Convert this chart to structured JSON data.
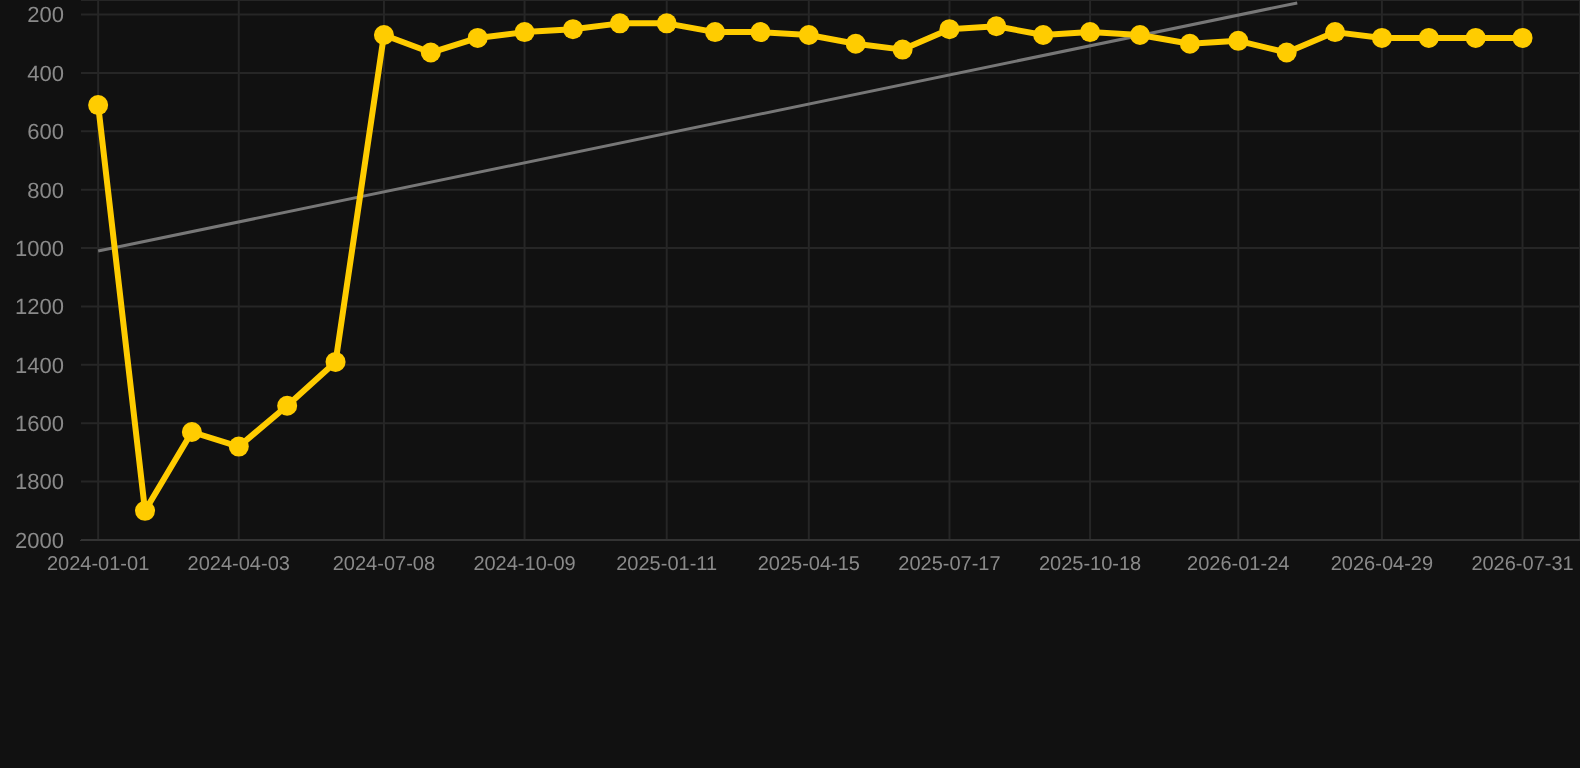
{
  "chart_data": {
    "type": "line",
    "x": [
      "2024-01-01",
      "2024-02-01",
      "2024-03-03",
      "2024-04-03",
      "2024-05-05",
      "2024-06-06",
      "2024-07-08",
      "2024-08-08",
      "2024-09-08",
      "2024-10-09",
      "2024-11-10",
      "2024-12-11",
      "2025-01-11",
      "2025-02-12",
      "2025-03-14",
      "2025-04-15",
      "2025-05-16",
      "2025-06-16",
      "2025-07-17",
      "2025-08-17",
      "2025-09-17",
      "2025-10-18",
      "2025-11-20",
      "2025-12-23",
      "2026-01-24",
      "2026-02-25",
      "2026-03-29",
      "2026-04-29",
      "2026-05-30",
      "2026-06-30",
      "2026-07-31"
    ],
    "series": [
      {
        "color": "#ffcc00",
        "values": [
          510,
          1900,
          1630,
          1680,
          1540,
          1390,
          270,
          330,
          280,
          260,
          250,
          230,
          230,
          260,
          260,
          270,
          300,
          320,
          250,
          240,
          270,
          260,
          270,
          300,
          290,
          330,
          260,
          280,
          280,
          280,
          280
        ]
      },
      {
        "type": "line",
        "color": "#777777",
        "marker": "none",
        "x": [
          "2024-01-01",
          "2026-03-04"
        ],
        "values": [
          1010,
          160
        ]
      }
    ],
    "xlim": [
      "2023-12-20",
      "2026-09-07"
    ],
    "xticks": [
      "2024-01-01",
      "2024-04-03",
      "2024-07-08",
      "2024-10-09",
      "2025-01-11",
      "2025-04-15",
      "2025-07-17",
      "2025-10-18",
      "2026-01-24",
      "2026-04-29",
      "2026-07-31"
    ],
    "ylim": [
      2000,
      150
    ],
    "yticks": [
      200,
      400,
      600,
      800,
      1000,
      1200,
      1400,
      1600,
      1800,
      2000
    ],
    "grid": true,
    "marker": "circle",
    "line_style": "solid",
    "legend": false
  }
}
